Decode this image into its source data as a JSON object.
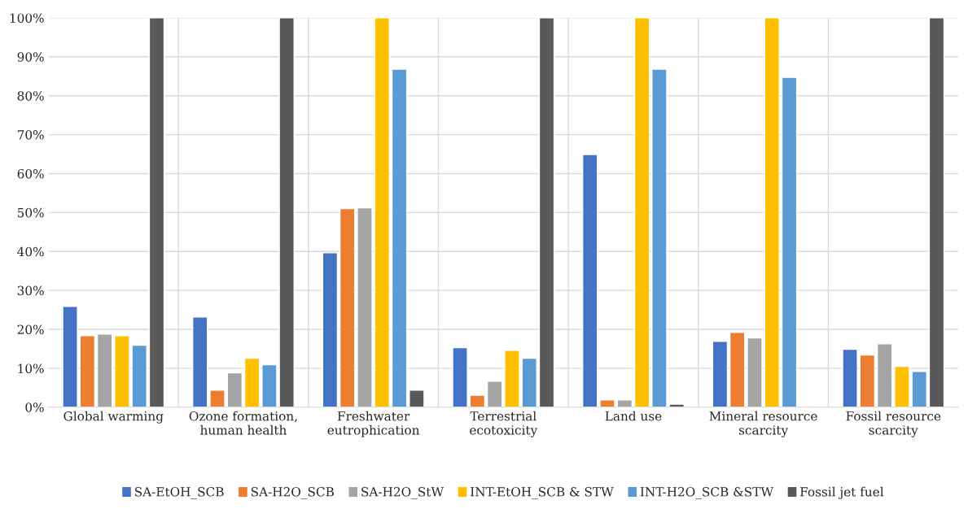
{
  "chart_data": {
    "type": "bar",
    "categories": [
      "Global warming",
      "Ozone formation,\nhuman health",
      "Freshwater\neutrophication",
      "Terrestrial\necotoxicity",
      "Land use",
      "Mineral resource\nscarcity",
      "Fossil resource\nscarcity"
    ],
    "series": [
      {
        "name": "SA-EtOH_SCB",
        "color": "#4472c4",
        "values": [
          25.9,
          23.2,
          39.7,
          15.3,
          64.9,
          16.9,
          14.9
        ]
      },
      {
        "name": "SA-H2O_SCB",
        "color": "#ed7d31",
        "values": [
          18.4,
          4.4,
          51.0,
          3.1,
          1.9,
          19.2,
          13.4
        ]
      },
      {
        "name": "SA-H2O_StW",
        "color": "#a5a5a5",
        "values": [
          18.8,
          8.8,
          51.2,
          6.7,
          1.9,
          17.8,
          16.3
        ]
      },
      {
        "name": "INT-EtOH_SCB & STW",
        "color": "#ffc000",
        "values": [
          18.4,
          12.6,
          100,
          14.6,
          100,
          100,
          10.5
        ]
      },
      {
        "name": "INT-H2O_SCB &STW",
        "color": "#5b9bd5",
        "values": [
          15.9,
          10.9,
          86.8,
          12.6,
          86.8,
          84.7,
          9.2
        ]
      },
      {
        "name": "Fossil jet fuel",
        "color": "#595959",
        "values": [
          100,
          100,
          4.4,
          100,
          0.8,
          null,
          100
        ]
      }
    ],
    "ylim": [
      0,
      100
    ],
    "yticks": [
      {
        "value": 0,
        "label": "0%"
      },
      {
        "value": 10,
        "label": "10%"
      },
      {
        "value": 20,
        "label": "20%"
      },
      {
        "value": 30,
        "label": "30%"
      },
      {
        "value": 40,
        "label": "40%"
      },
      {
        "value": 50,
        "label": "50%"
      },
      {
        "value": 60,
        "label": "60%"
      },
      {
        "value": 70,
        "label": "70%"
      },
      {
        "value": 80,
        "label": "80%"
      },
      {
        "value": 90,
        "label": "90%"
      },
      {
        "value": 100,
        "label": "100%"
      }
    ],
    "grid": true,
    "legend": "bottom"
  }
}
